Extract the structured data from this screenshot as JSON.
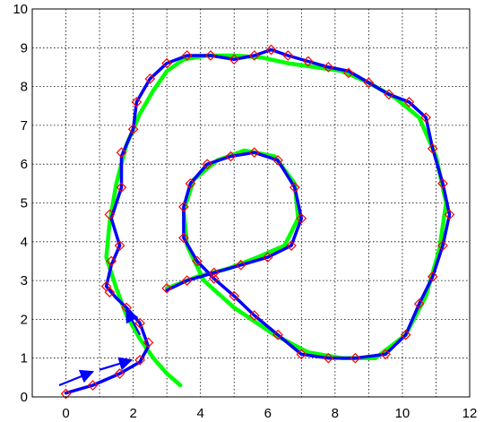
{
  "chart_data": {
    "type": "line",
    "xlim": [
      -1,
      12
    ],
    "ylim": [
      0,
      10
    ],
    "xticks": [
      "0",
      "2",
      "4",
      "6",
      "8",
      "10",
      "12"
    ],
    "yticks": [
      "0",
      "1",
      "2",
      "3",
      "4",
      "5",
      "6",
      "7",
      "8",
      "9",
      "10"
    ],
    "grid": true,
    "series": [
      {
        "color": "#00ff00",
        "style": "thick line",
        "points": [
          [
            3.4,
            0.3
          ],
          [
            3.0,
            0.6
          ],
          [
            2.6,
            1.0
          ],
          [
            2.2,
            1.5
          ],
          [
            1.8,
            2.1
          ],
          [
            1.5,
            2.8
          ],
          [
            1.2,
            3.6
          ],
          [
            1.3,
            4.5
          ],
          [
            1.5,
            5.5
          ],
          [
            1.8,
            6.5
          ],
          [
            2.2,
            7.3
          ],
          [
            2.6,
            7.9
          ],
          [
            3.0,
            8.4
          ],
          [
            3.5,
            8.7
          ],
          [
            4.2,
            8.8
          ],
          [
            5.0,
            8.8
          ],
          [
            5.8,
            8.75
          ],
          [
            6.6,
            8.6
          ],
          [
            7.4,
            8.5
          ],
          [
            8.2,
            8.4
          ],
          [
            9.0,
            8.1
          ],
          [
            9.8,
            7.7
          ],
          [
            10.5,
            7.2
          ],
          [
            11.0,
            6.2
          ],
          [
            11.3,
            5.0
          ],
          [
            11.1,
            3.8
          ],
          [
            10.7,
            2.6
          ],
          [
            10.1,
            1.6
          ],
          [
            9.2,
            1.0
          ],
          [
            8.2,
            1.0
          ],
          [
            7.2,
            1.15
          ],
          [
            6.2,
            1.6
          ],
          [
            5.0,
            2.3
          ],
          [
            4.1,
            3.0
          ],
          [
            3.6,
            3.9
          ],
          [
            3.5,
            4.8
          ],
          [
            3.8,
            5.6
          ],
          [
            4.5,
            6.1
          ],
          [
            5.3,
            6.35
          ],
          [
            6.2,
            6.2
          ],
          [
            6.8,
            5.5
          ],
          [
            6.9,
            4.6
          ],
          [
            6.5,
            3.9
          ],
          [
            5.7,
            3.6
          ],
          [
            4.8,
            3.3
          ],
          [
            3.9,
            3.1
          ],
          [
            3.0,
            2.8
          ]
        ]
      },
      {
        "color": "#0000ff",
        "style": "thick line",
        "points": [
          [
            0,
            0.1
          ],
          [
            0.8,
            0.3
          ],
          [
            1.6,
            0.6
          ],
          [
            2.2,
            0.9
          ],
          [
            2.45,
            1.3
          ],
          [
            2.2,
            1.9
          ],
          [
            1.8,
            2.3
          ],
          [
            1.5,
            2.55
          ],
          [
            1.2,
            2.85
          ],
          [
            1.35,
            3.4
          ],
          [
            1.6,
            3.9
          ],
          [
            1.35,
            4.6
          ],
          [
            1.65,
            5.4
          ],
          [
            1.65,
            6.2
          ],
          [
            2.0,
            6.9
          ],
          [
            2.1,
            7.6
          ],
          [
            2.5,
            8.2
          ],
          [
            3.0,
            8.6
          ],
          [
            3.6,
            8.8
          ],
          [
            4.3,
            8.8
          ],
          [
            5.0,
            8.7
          ],
          [
            5.6,
            8.8
          ],
          [
            6.1,
            8.95
          ],
          [
            6.6,
            8.8
          ],
          [
            7.2,
            8.65
          ],
          [
            7.8,
            8.5
          ],
          [
            8.4,
            8.4
          ],
          [
            9.0,
            8.1
          ],
          [
            9.6,
            7.8
          ],
          [
            10.2,
            7.6
          ],
          [
            10.7,
            7.2
          ],
          [
            10.9,
            6.4
          ],
          [
            11.2,
            5.5
          ],
          [
            11.4,
            4.7
          ],
          [
            11.2,
            3.9
          ],
          [
            10.9,
            3.1
          ],
          [
            10.5,
            2.4
          ],
          [
            10.1,
            1.6
          ],
          [
            9.5,
            1.1
          ],
          [
            8.6,
            1.0
          ],
          [
            7.8,
            1.0
          ],
          [
            7.0,
            1.1
          ],
          [
            6.3,
            1.6
          ],
          [
            5.6,
            2.1
          ],
          [
            5.0,
            2.6
          ],
          [
            4.4,
            3.05
          ],
          [
            3.9,
            3.5
          ],
          [
            3.5,
            4.1
          ],
          [
            3.5,
            4.9
          ],
          [
            3.7,
            5.5
          ],
          [
            4.2,
            6.0
          ],
          [
            4.9,
            6.2
          ],
          [
            5.6,
            6.3
          ],
          [
            6.3,
            6.1
          ],
          [
            6.8,
            5.4
          ],
          [
            7.0,
            4.6
          ],
          [
            6.7,
            3.9
          ],
          [
            6.0,
            3.6
          ],
          [
            5.2,
            3.4
          ],
          [
            4.4,
            3.2
          ],
          [
            3.6,
            3.0
          ],
          [
            3.0,
            2.75
          ]
        ]
      },
      {
        "color": "#ff0000",
        "style": "diamond markers",
        "points": [
          [
            0,
            0.08
          ],
          [
            0.8,
            0.3
          ],
          [
            1.6,
            0.6
          ],
          [
            2.2,
            0.95
          ],
          [
            2.45,
            1.4
          ],
          [
            2.2,
            1.9
          ],
          [
            1.8,
            2.3
          ],
          [
            1.3,
            2.7
          ],
          [
            1.2,
            2.85
          ],
          [
            1.35,
            3.5
          ],
          [
            1.6,
            3.9
          ],
          [
            1.3,
            4.7
          ],
          [
            1.65,
            5.4
          ],
          [
            1.65,
            6.3
          ],
          [
            2.0,
            6.9
          ],
          [
            2.1,
            7.6
          ],
          [
            2.5,
            8.2
          ],
          [
            3.0,
            8.6
          ],
          [
            3.6,
            8.8
          ],
          [
            4.3,
            8.8
          ],
          [
            5.0,
            8.7
          ],
          [
            5.6,
            8.8
          ],
          [
            6.1,
            8.95
          ],
          [
            6.6,
            8.8
          ],
          [
            7.2,
            8.65
          ],
          [
            7.8,
            8.5
          ],
          [
            8.4,
            8.35
          ],
          [
            9.0,
            8.1
          ],
          [
            9.6,
            7.8
          ],
          [
            10.2,
            7.6
          ],
          [
            10.7,
            7.2
          ],
          [
            10.9,
            6.4
          ],
          [
            11.2,
            5.5
          ],
          [
            11.4,
            4.7
          ],
          [
            11.2,
            3.9
          ],
          [
            10.9,
            3.1
          ],
          [
            10.5,
            2.4
          ],
          [
            10.1,
            1.6
          ],
          [
            9.5,
            1.1
          ],
          [
            8.6,
            1.0
          ],
          [
            7.8,
            1.0
          ],
          [
            7.0,
            1.1
          ],
          [
            6.3,
            1.6
          ],
          [
            5.6,
            2.1
          ],
          [
            5.0,
            2.6
          ],
          [
            4.4,
            3.05
          ],
          [
            3.9,
            3.5
          ],
          [
            3.5,
            4.1
          ],
          [
            3.5,
            4.9
          ],
          [
            3.7,
            5.5
          ],
          [
            4.2,
            6.0
          ],
          [
            4.9,
            6.2
          ],
          [
            5.6,
            6.3
          ],
          [
            6.3,
            6.1
          ],
          [
            6.8,
            5.4
          ],
          [
            7.0,
            4.6
          ],
          [
            6.7,
            3.9
          ],
          [
            6.0,
            3.6
          ],
          [
            5.2,
            3.4
          ],
          [
            4.4,
            3.2
          ],
          [
            3.6,
            3.0
          ],
          [
            3.0,
            2.8
          ]
        ]
      }
    ],
    "annotations": [
      {
        "type": "arrow",
        "color": "#0000ff",
        "from": [
          -0.2,
          0.3
        ],
        "to": [
          0.8,
          0.65
        ]
      },
      {
        "type": "arrow",
        "color": "#0000ff",
        "from": [
          1.0,
          0.7
        ],
        "to": [
          1.95,
          0.95
        ]
      },
      {
        "type": "arrow",
        "color": "#0000ff",
        "from": [
          2.2,
          1.6
        ],
        "to": [
          1.8,
          2.25
        ]
      }
    ]
  }
}
